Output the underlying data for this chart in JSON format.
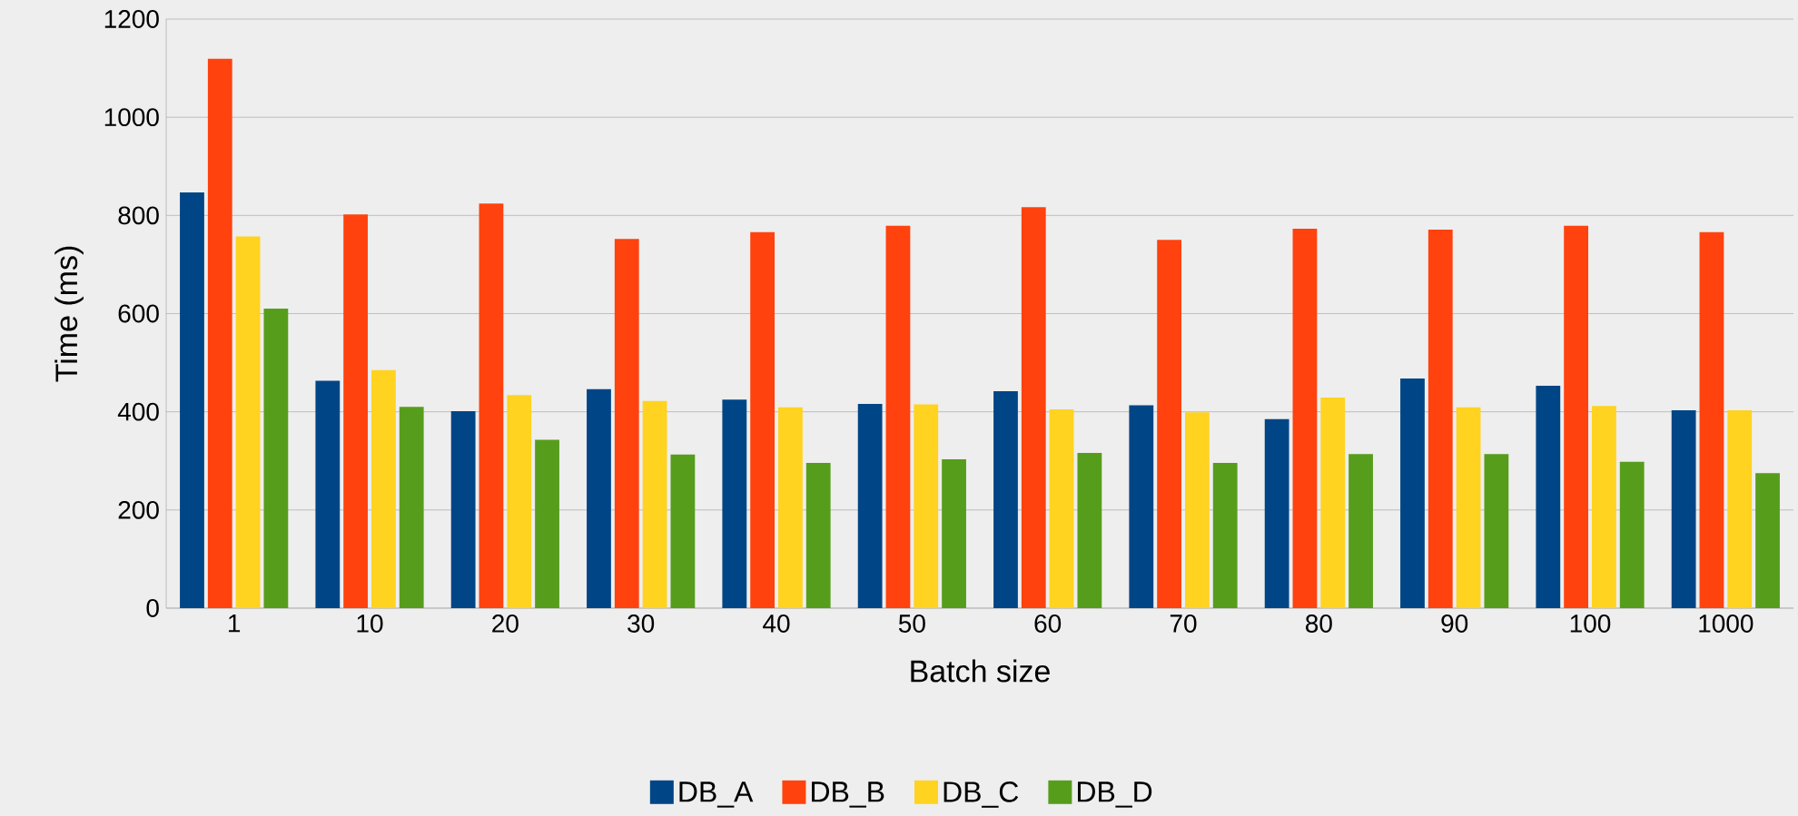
{
  "chart_data": {
    "type": "bar",
    "xlabel": "Batch size",
    "ylabel": "Time (ms)",
    "categories": [
      "1",
      "10",
      "20",
      "30",
      "40",
      "50",
      "60",
      "70",
      "80",
      "90",
      "100",
      "1000"
    ],
    "series": [
      {
        "name": "DB_A",
        "color": "#004586",
        "values": [
          847,
          463,
          401,
          446,
          425,
          416,
          442,
          413,
          385,
          468,
          453,
          403
        ]
      },
      {
        "name": "DB_B",
        "color": "#ff420e",
        "values": [
          1119,
          802,
          824,
          752,
          766,
          779,
          817,
          750,
          773,
          771,
          779,
          766
        ]
      },
      {
        "name": "DB_C",
        "color": "#ffd320",
        "values": [
          757,
          485,
          434,
          422,
          409,
          415,
          405,
          399,
          429,
          409,
          412,
          403
        ]
      },
      {
        "name": "DB_D",
        "color": "#579d1c",
        "values": [
          610,
          410,
          343,
          313,
          296,
          303,
          316,
          296,
          314,
          314,
          298,
          275
        ]
      }
    ],
    "ylim": [
      0,
      1200
    ],
    "yticks": [
      0,
      200,
      400,
      600,
      800,
      1000,
      1200
    ],
    "grid": "y",
    "legend": "bottom"
  }
}
